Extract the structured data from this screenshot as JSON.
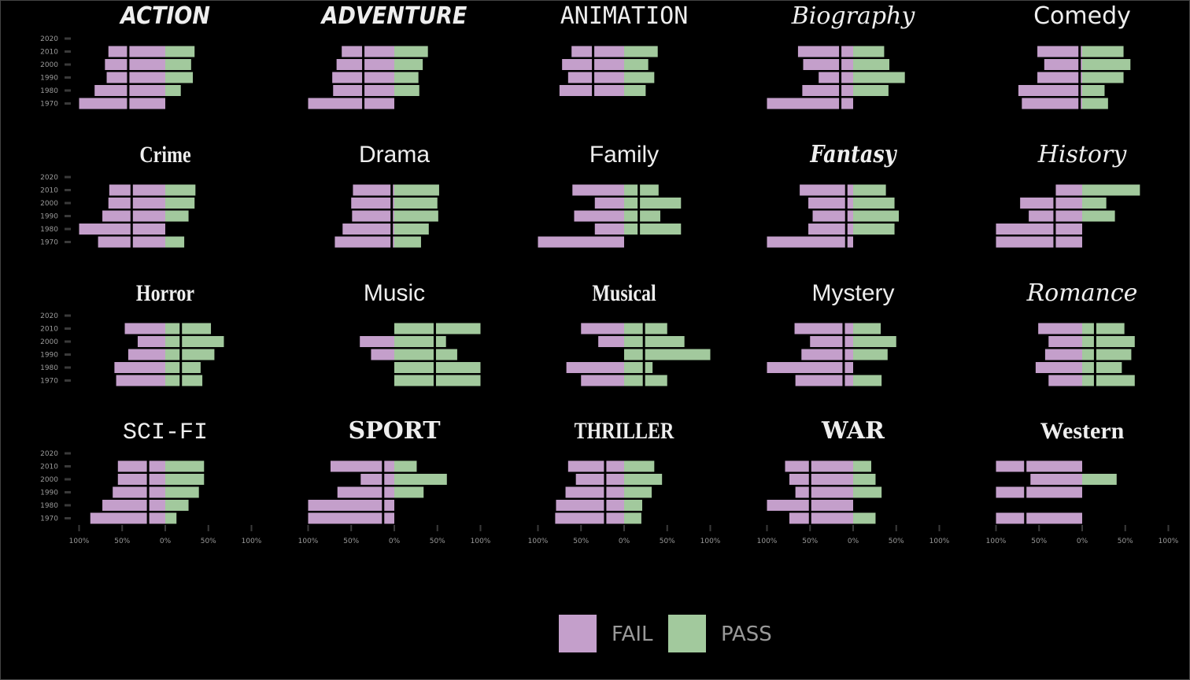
{
  "colors": {
    "background": "#000000",
    "frame": "#444444",
    "fail": "#c49fcb",
    "pass": "#a2c99d",
    "title": "#eeeeee",
    "axis_text": "#999999",
    "tick": "#3a3a3a",
    "ref_line": "#000000"
  },
  "legend": {
    "items": [
      {
        "key": "fail",
        "label": "FAIL"
      },
      {
        "key": "pass",
        "label": "PASS"
      }
    ]
  },
  "chart_data": {
    "type": "bar",
    "subtype": "diverging-horizontal-small-multiples",
    "grid": false,
    "legend_position": "bottom",
    "y_categories": [
      "2020",
      "2010",
      "2000",
      "1990",
      "1980",
      "1970"
    ],
    "x_ticks": [
      -100,
      -50,
      0,
      50,
      100
    ],
    "x_tick_labels": [
      "100%",
      "50%",
      "0%",
      "50%",
      "100%"
    ],
    "xlim": [
      -100,
      100
    ],
    "series_names": [
      "FAIL",
      "PASS"
    ],
    "reference_line_note": "vertical black line inside bars",
    "panels": [
      {
        "title": "ACTION",
        "title_style": "bold-italic",
        "ref": -43,
        "fail": [
          0,
          66,
          70,
          68,
          82,
          100
        ],
        "pass": [
          0,
          34,
          30,
          32,
          18,
          0
        ]
      },
      {
        "title": "ADVENTURE",
        "title_style": "bold-italic",
        "ref": -36,
        "fail": [
          0,
          61,
          67,
          72,
          71,
          100
        ],
        "pass": [
          0,
          39,
          33,
          28,
          29,
          0
        ]
      },
      {
        "title": "ANIMATION",
        "title_style": "mono",
        "ref": -36,
        "fail": [
          0,
          61,
          72,
          65,
          75,
          0
        ],
        "pass": [
          0,
          39,
          28,
          35,
          25,
          0
        ]
      },
      {
        "title": "Biography",
        "title_style": "italic-serif",
        "ref": -15,
        "fail": [
          0,
          64,
          58,
          40,
          59,
          100
        ],
        "pass": [
          0,
          36,
          42,
          60,
          41,
          0
        ]
      },
      {
        "title": "Comedy",
        "title_style": "rounded",
        "ref": -3,
        "fail": [
          0,
          52,
          44,
          52,
          74,
          70
        ],
        "pass": [
          0,
          48,
          56,
          48,
          26,
          30
        ]
      },
      {
        "title": "Crime",
        "title_style": "condensed-bold",
        "ref": -39,
        "fail": [
          0,
          65,
          66,
          73,
          100,
          78
        ],
        "pass": [
          0,
          35,
          34,
          27,
          0,
          22
        ]
      },
      {
        "title": "Drama",
        "title_style": "plain",
        "ref": -3,
        "fail": [
          0,
          48,
          50,
          49,
          60,
          69
        ],
        "pass": [
          0,
          52,
          50,
          51,
          40,
          31
        ]
      },
      {
        "title": "Family",
        "title_style": "plain",
        "ref": 17,
        "fail": [
          0,
          60,
          34,
          58,
          34,
          100
        ],
        "pass": [
          0,
          40,
          66,
          42,
          66,
          0
        ]
      },
      {
        "title": "Fantasy",
        "title_style": "script-bold",
        "ref": -8,
        "fail": [
          0,
          62,
          52,
          47,
          52,
          100
        ],
        "pass": [
          0,
          38,
          48,
          53,
          48,
          0
        ]
      },
      {
        "title": "History",
        "title_style": "italic-serif",
        "ref": -32,
        "fail": [
          0,
          33,
          72,
          62,
          100,
          100
        ],
        "pass": [
          0,
          67,
          28,
          38,
          0,
          0
        ]
      },
      {
        "title": "Horror",
        "title_style": "gothic",
        "ref": 18,
        "fail": [
          0,
          47,
          32,
          43,
          59,
          57
        ],
        "pass": [
          0,
          53,
          68,
          57,
          41,
          43
        ]
      },
      {
        "title": "Music",
        "title_style": "plain",
        "ref": 47,
        "fail": [
          0,
          0,
          40,
          27,
          0,
          0
        ],
        "pass": [
          0,
          100,
          60,
          73,
          100,
          100
        ]
      },
      {
        "title": "Musical",
        "title_style": "condensed-bold",
        "ref": 23,
        "fail": [
          0,
          50,
          30,
          0,
          67,
          50
        ],
        "pass": [
          0,
          50,
          70,
          100,
          33,
          50
        ]
      },
      {
        "title": "Mystery",
        "title_style": "plain",
        "ref": -11,
        "fail": [
          0,
          68,
          50,
          60,
          100,
          67
        ],
        "pass": [
          0,
          32,
          50,
          40,
          0,
          33
        ]
      },
      {
        "title": "Romance",
        "title_style": "italic-serif",
        "ref": 15,
        "fail": [
          0,
          51,
          39,
          43,
          54,
          39
        ],
        "pass": [
          0,
          49,
          61,
          57,
          46,
          61
        ]
      },
      {
        "title": "SCI-FI",
        "title_style": "thin-mono",
        "ref": -20,
        "fail": [
          0,
          55,
          55,
          61,
          73,
          87
        ],
        "pass": [
          0,
          45,
          45,
          39,
          27,
          13
        ]
      },
      {
        "title": "SPORT",
        "title_style": "slab-bold",
        "ref": -13,
        "fail": [
          0,
          74,
          39,
          66,
          100,
          100
        ],
        "pass": [
          0,
          26,
          61,
          34,
          0,
          0
        ]
      },
      {
        "title": "THRILLER",
        "title_style": "gothic",
        "ref": -22,
        "fail": [
          0,
          65,
          56,
          68,
          79,
          80
        ],
        "pass": [
          0,
          35,
          44,
          32,
          21,
          20
        ]
      },
      {
        "title": "WAR",
        "title_style": "slab-bold",
        "ref": -50,
        "fail": [
          0,
          79,
          74,
          67,
          100,
          74
        ],
        "pass": [
          0,
          21,
          26,
          33,
          0,
          26
        ]
      },
      {
        "title": "Western",
        "title_style": "serif-bold",
        "ref": -66,
        "fail": [
          0,
          100,
          60,
          100,
          0,
          100
        ],
        "pass": [
          0,
          0,
          40,
          0,
          0,
          0
        ]
      }
    ]
  }
}
